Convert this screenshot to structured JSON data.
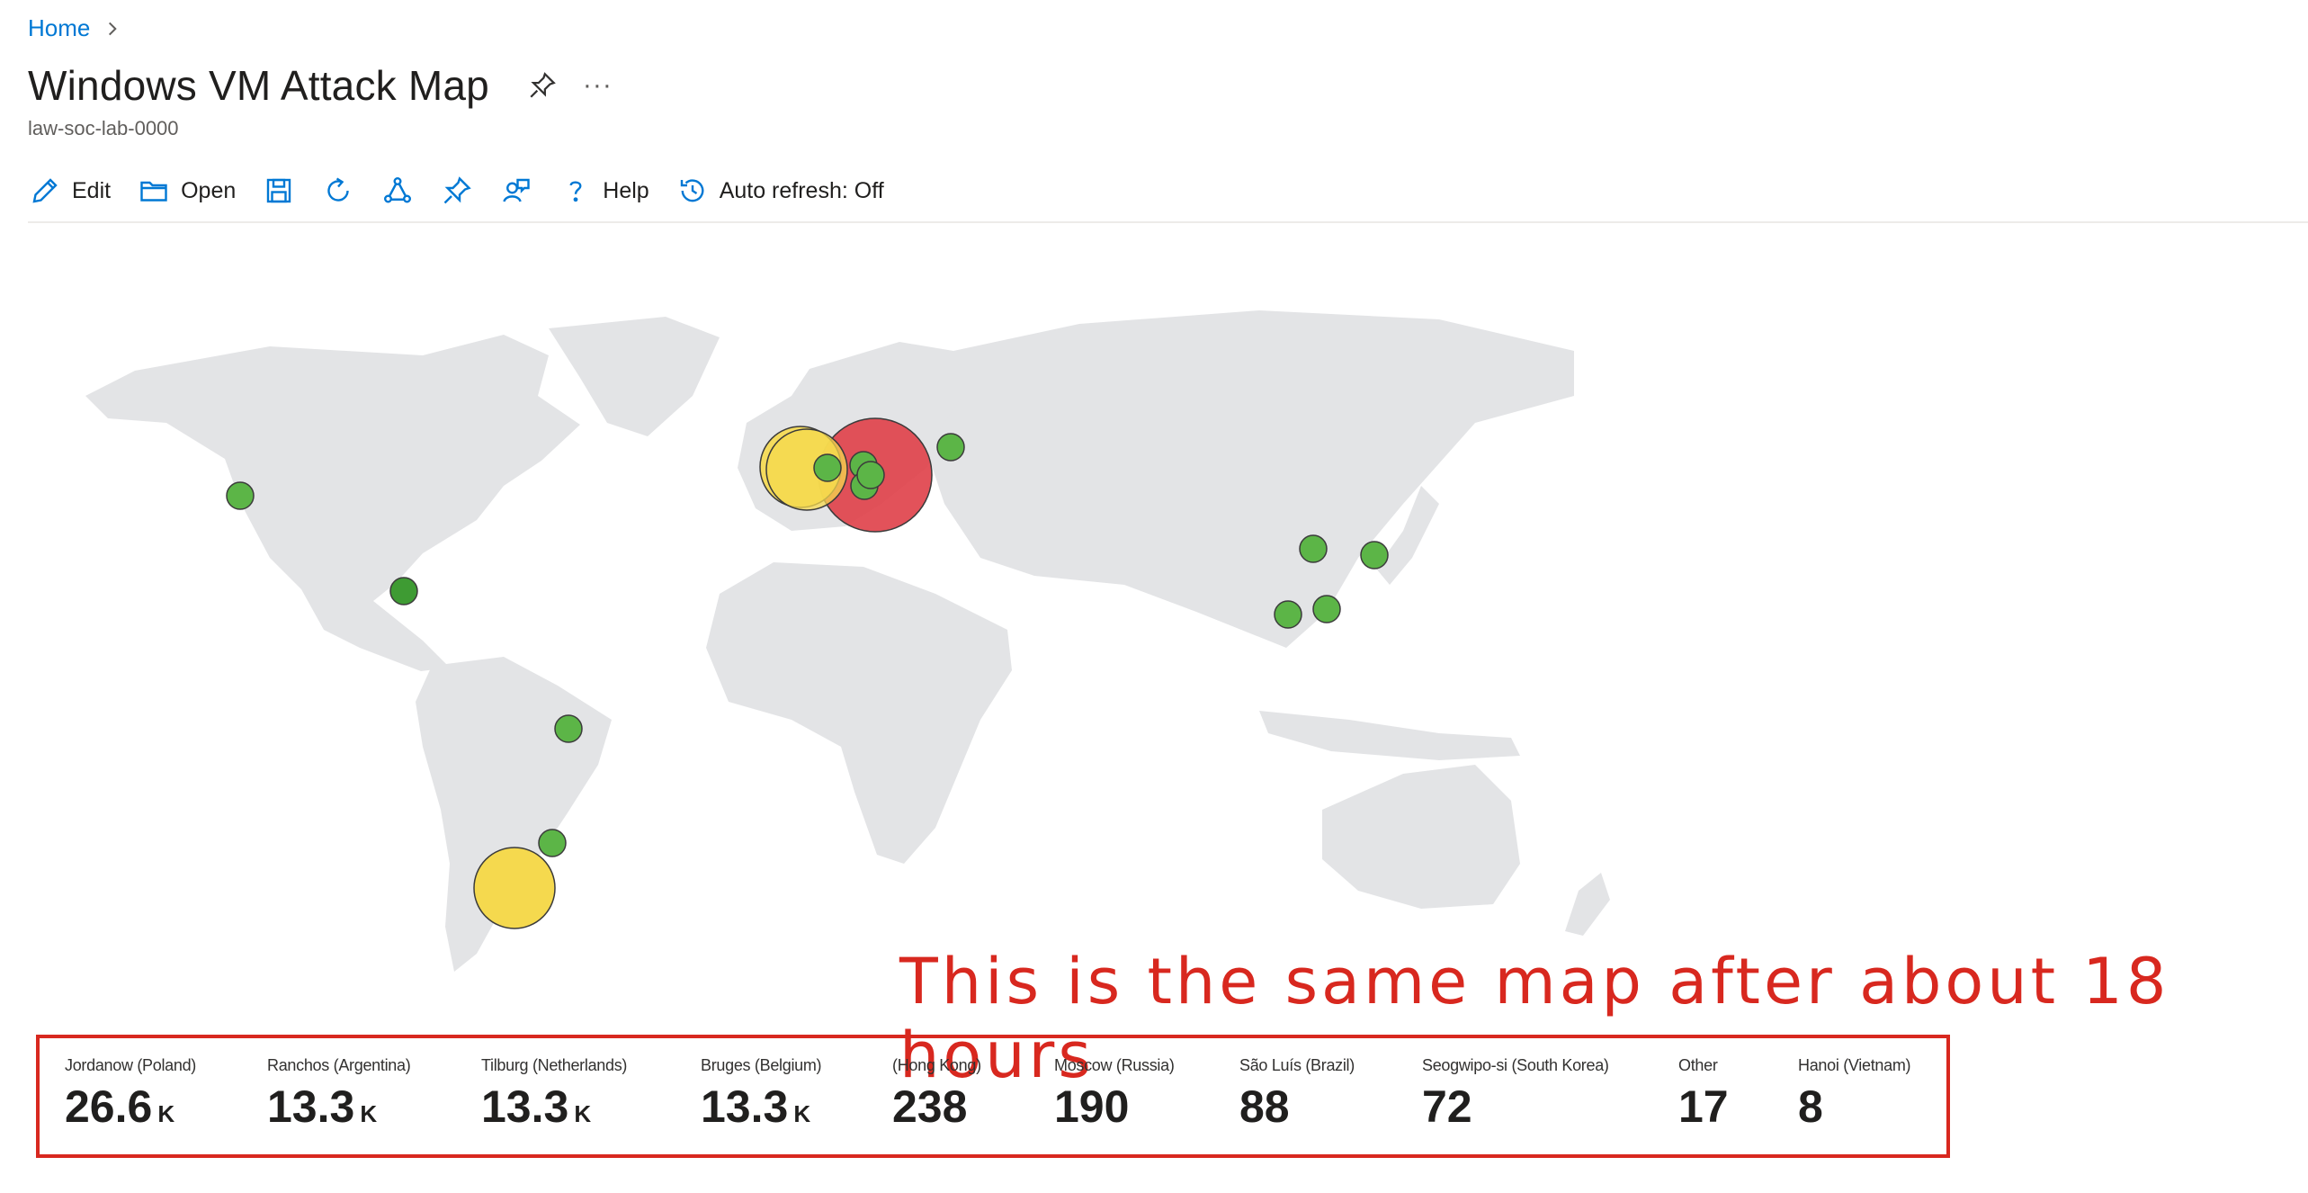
{
  "breadcrumb": {
    "home": "Home"
  },
  "header": {
    "title": "Windows VM Attack Map",
    "subtitle": "law-soc-lab-0000",
    "more": "···"
  },
  "toolbar": {
    "edit": "Edit",
    "open": "Open",
    "help": "Help",
    "auto_refresh": "Auto refresh: Off"
  },
  "caption": "This is the same map after about 18 hours",
  "colors": {
    "accent": "#0078d4",
    "red": "#d8281f",
    "bubble_red": "#e0434c",
    "bubble_yellow": "#f5d94e",
    "bubble_green": "#5cb547",
    "land": "#e3e4e6"
  },
  "locations": [
    {
      "label": "Jordanow (Poland)",
      "value": "26.6",
      "unit": "K"
    },
    {
      "label": "Ranchos (Argentina)",
      "value": "13.3",
      "unit": "K"
    },
    {
      "label": "Tilburg (Netherlands)",
      "value": "13.3",
      "unit": "K"
    },
    {
      "label": "Bruges (Belgium)",
      "value": "13.3",
      "unit": "K"
    },
    {
      "label": "(Hong Kong)",
      "value": "238",
      "unit": ""
    },
    {
      "label": "Moscow (Russia)",
      "value": "190",
      "unit": ""
    },
    {
      "label": "São Luís (Brazil)",
      "value": "88",
      "unit": ""
    },
    {
      "label": "Seogwipo-si (South Korea)",
      "value": "72",
      "unit": ""
    },
    {
      "label": "Other",
      "value": "17",
      "unit": ""
    },
    {
      "label": "Hanoi (Vietnam)",
      "value": "8",
      "unit": ""
    }
  ],
  "markers": [
    {
      "place": "Poland",
      "severity": "red"
    },
    {
      "place": "Belgium",
      "severity": "yellow"
    },
    {
      "place": "Netherlands",
      "severity": "yellow"
    },
    {
      "place": "Argentina",
      "severity": "yellow"
    },
    {
      "place": "Moscow",
      "severity": "green"
    },
    {
      "place": "Germany",
      "severity": "green"
    },
    {
      "place": "Czechia",
      "severity": "green"
    },
    {
      "place": "Austria",
      "severity": "green"
    },
    {
      "place": "West US",
      "severity": "green"
    },
    {
      "place": "Florida",
      "severity": "green"
    },
    {
      "place": "São Luís",
      "severity": "green"
    },
    {
      "place": "Southern Brazil",
      "severity": "green"
    },
    {
      "place": "North China",
      "severity": "green"
    },
    {
      "place": "Korea",
      "severity": "green"
    },
    {
      "place": "Hong Kong",
      "severity": "green"
    },
    {
      "place": "Hanoi",
      "severity": "green"
    }
  ]
}
